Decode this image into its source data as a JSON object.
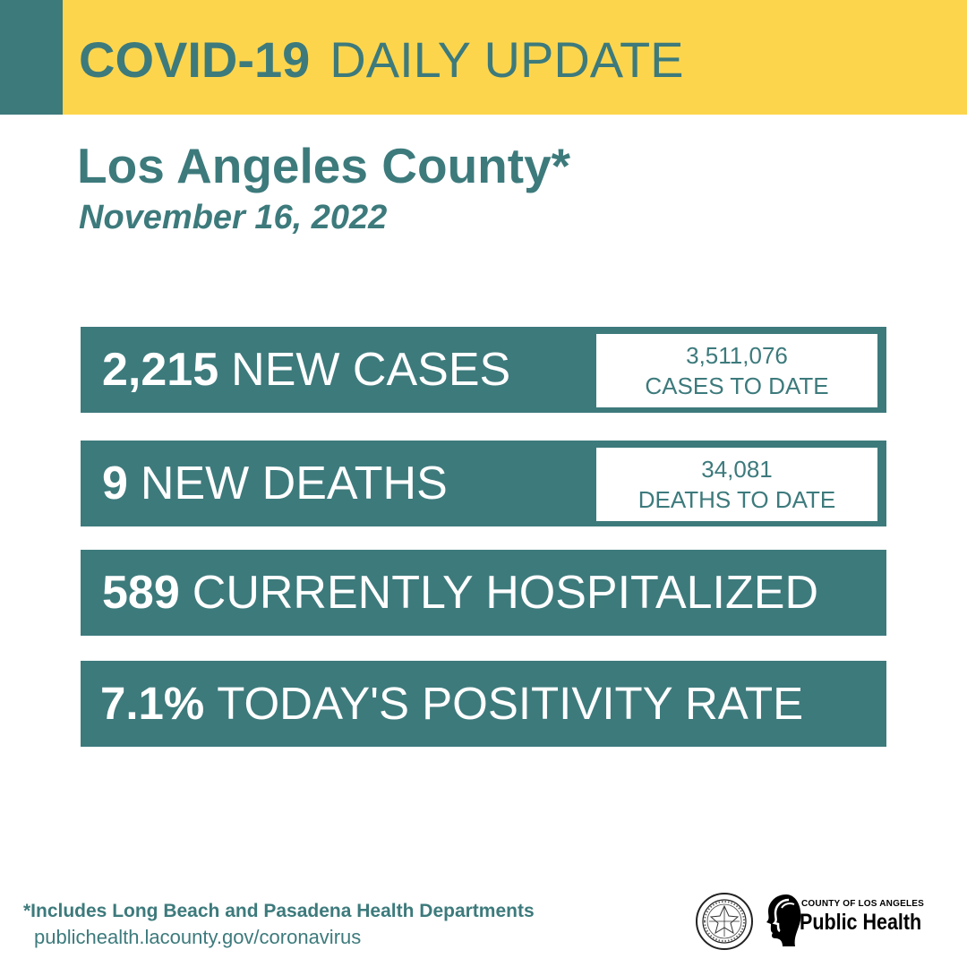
{
  "header": {
    "title_bold": "COVID-19",
    "title_light": "DAILY UPDATE"
  },
  "location": {
    "county": "Los Angeles County*",
    "date": "November 16, 2022"
  },
  "stats": {
    "new_cases": {
      "value": "2,215",
      "label": "NEW CASES",
      "to_date_value": "3,511,076",
      "to_date_label": "CASES TO DATE"
    },
    "new_deaths": {
      "value": "9",
      "label": "NEW DEATHS",
      "to_date_value": "34,081",
      "to_date_label": "DEATHS TO DATE"
    },
    "hospitalized": {
      "value": "589",
      "label": "CURRENTLY HOSPITALIZED"
    },
    "positivity": {
      "value": "7.1%",
      "label": "TODAY'S POSITIVITY RATE"
    }
  },
  "footer": {
    "footnote": "*Includes Long Beach and Pasadena Health Departments",
    "url": "publichealth.lacounty.gov/coronavirus",
    "logo_small": "COUNTY OF LOS ANGELES",
    "logo_big": "Public Health",
    "seal_icon": "county-seal-icon",
    "logo_icon": "public-health-profile-icon"
  },
  "colors": {
    "teal": "#3d7a7c",
    "yellow": "#fdd54d",
    "white": "#ffffff"
  }
}
